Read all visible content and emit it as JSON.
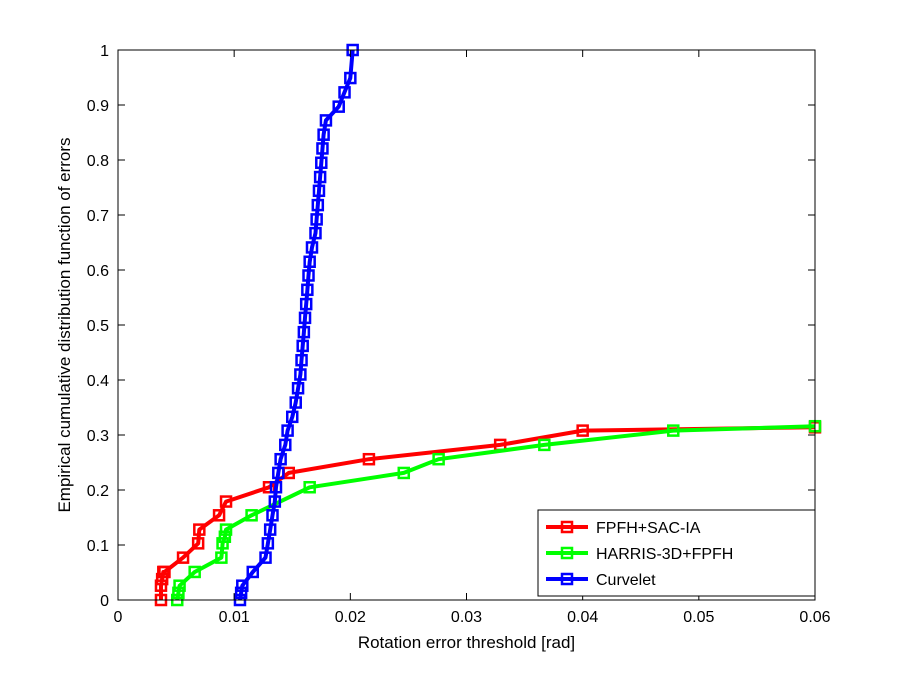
{
  "chart_data": {
    "type": "line",
    "xlabel": "Rotation error threshold [rad]",
    "ylabel": "Empirical cumulative distribution function of errors",
    "xlim": [
      0,
      0.06
    ],
    "ylim": [
      0,
      1
    ],
    "xticks": [
      0,
      0.01,
      0.02,
      0.03,
      0.04,
      0.05,
      0.06
    ],
    "xtick_labels": [
      "0",
      "0.01",
      "0.02",
      "0.03",
      "0.04",
      "0.05",
      "0.06"
    ],
    "yticks": [
      0,
      0.1,
      0.2,
      0.3,
      0.4,
      0.5,
      0.6,
      0.7,
      0.8,
      0.9,
      1
    ],
    "ytick_labels": [
      "0",
      "0.1",
      "0.2",
      "0.3",
      "0.4",
      "0.5",
      "0.6",
      "0.7",
      "0.8",
      "0.9",
      "1"
    ],
    "grid": false,
    "legend_position": "bottom-right",
    "marker": "square",
    "series": [
      {
        "name": "FPFH+SAC-IA",
        "color": "#ff0000",
        "x": [
          0.0037,
          0.0037,
          0.0038,
          0.0039,
          0.004,
          0.0056,
          0.0069,
          0.007,
          0.0087,
          0.0093,
          0.013,
          0.0147,
          0.0216,
          0.0329,
          0.04,
          0.06
        ],
        "y": [
          0.0,
          0.026,
          0.038,
          0.051,
          0.051,
          0.077,
          0.103,
          0.128,
          0.154,
          0.179,
          0.205,
          0.231,
          0.256,
          0.282,
          0.308,
          0.314
        ]
      },
      {
        "name": "HARRIS-3D+FPFH",
        "color": "#00ff00",
        "x": [
          0.0051,
          0.0052,
          0.0053,
          0.0066,
          0.0089,
          0.009,
          0.0092,
          0.0093,
          0.0115,
          0.0165,
          0.0246,
          0.0276,
          0.0367,
          0.0478,
          0.06
        ],
        "y": [
          0.0,
          0.013,
          0.026,
          0.051,
          0.077,
          0.103,
          0.115,
          0.128,
          0.154,
          0.205,
          0.231,
          0.256,
          0.282,
          0.308,
          0.316
        ]
      },
      {
        "name": "Curvelet",
        "color": "#0000ff",
        "x": [
          0.0105,
          0.0106,
          0.0107,
          0.0116,
          0.0127,
          0.0129,
          0.0131,
          0.0133,
          0.0135,
          0.0136,
          0.0138,
          0.014,
          0.0144,
          0.0146,
          0.015,
          0.0153,
          0.0155,
          0.0157,
          0.0158,
          0.0159,
          0.016,
          0.0161,
          0.0162,
          0.0163,
          0.0164,
          0.0165,
          0.0167,
          0.017,
          0.0171,
          0.0172,
          0.0173,
          0.0174,
          0.0175,
          0.0176,
          0.0177,
          0.0179,
          0.019,
          0.0195,
          0.02,
          0.0202
        ],
        "y": [
          0.0,
          0.013,
          0.026,
          0.051,
          0.077,
          0.103,
          0.128,
          0.154,
          0.179,
          0.205,
          0.231,
          0.256,
          0.282,
          0.308,
          0.333,
          0.359,
          0.385,
          0.41,
          0.436,
          0.462,
          0.487,
          0.513,
          0.538,
          0.564,
          0.59,
          0.615,
          0.641,
          0.667,
          0.692,
          0.718,
          0.744,
          0.769,
          0.795,
          0.821,
          0.846,
          0.872,
          0.897,
          0.923,
          0.949,
          1.0
        ]
      }
    ]
  }
}
